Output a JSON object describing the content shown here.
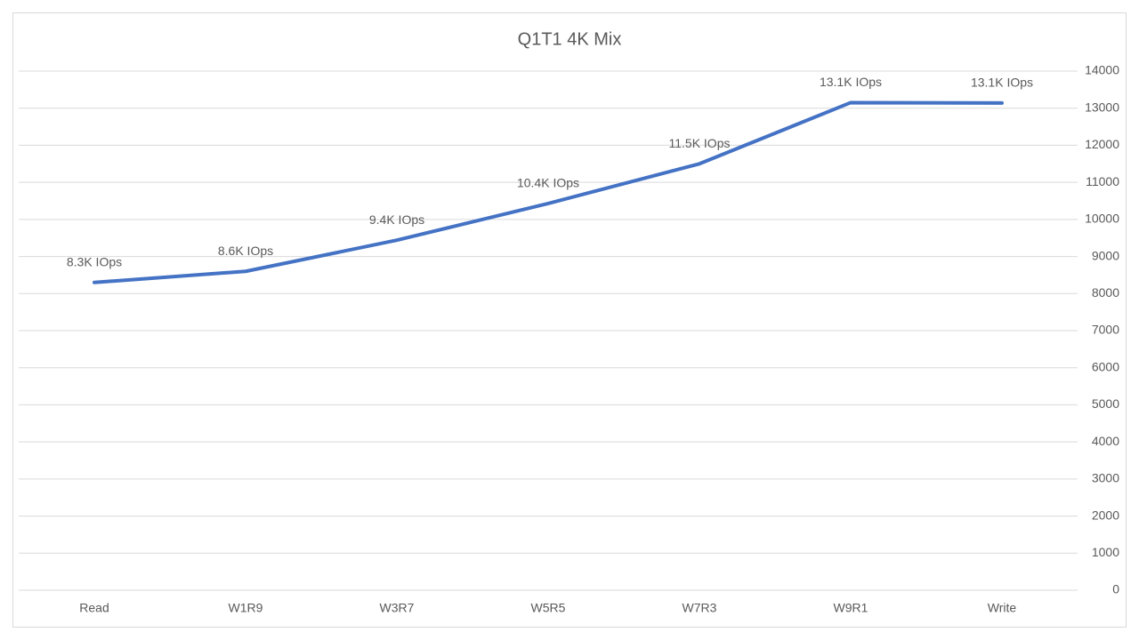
{
  "chart_data": {
    "type": "line",
    "title": "Q1T1 4K Mix",
    "categories": [
      "Read",
      "W1R9",
      "W3R7",
      "W5R5",
      "W7R3",
      "W9R1",
      "Write"
    ],
    "series": [
      {
        "name": "IOps",
        "color": "#4472c4",
        "values": [
          8300,
          8600,
          9440,
          10430,
          11500,
          13150,
          13140
        ],
        "value_labels": [
          "8.3K IOps",
          "8.6K IOps",
          "9.4K IOps",
          "10.4K IOps",
          "11.5K IOps",
          "13.1K IOps",
          "13.1K IOps"
        ]
      }
    ],
    "ylim": [
      0,
      14000
    ],
    "yticks": [
      0,
      1000,
      2000,
      3000,
      4000,
      5000,
      6000,
      7000,
      8000,
      9000,
      10000,
      11000,
      12000,
      13000,
      14000
    ],
    "grid": true
  }
}
